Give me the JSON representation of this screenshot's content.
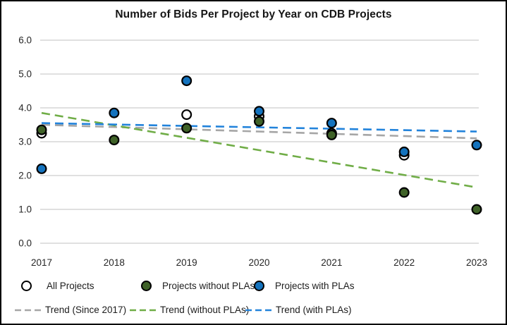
{
  "chart_data": {
    "type": "scatter",
    "title": "Number of Bids Per Project by Year on CDB Projects",
    "xlabel": "",
    "ylabel": "",
    "x": [
      2017,
      2018,
      2019,
      2020,
      2021,
      2022,
      2023
    ],
    "x_tick_labels": [
      "2017",
      "2018",
      "2019",
      "2020",
      "2021",
      "2022",
      "2023"
    ],
    "y_ticks": [
      0,
      1,
      2,
      3,
      4,
      5,
      6
    ],
    "y_tick_labels": [
      "0.0",
      "1.0",
      "2.0",
      "3.0",
      "4.0",
      "5.0",
      "6.0"
    ],
    "xlim": [
      2017,
      2023
    ],
    "ylim": [
      0,
      6
    ],
    "grid": "horizontal-only",
    "legend_position": "bottom",
    "series": [
      {
        "name": "All Projects",
        "marker": "open-circle",
        "fill": "#FFFFFF",
        "stroke": "#000000",
        "values": [
          3.25,
          null,
          3.8,
          3.75,
          3.25,
          2.6,
          null
        ]
      },
      {
        "name": "Projects without PLAs",
        "marker": "circle",
        "fill": "#3F6228",
        "stroke": "#000000",
        "values": [
          3.35,
          3.05,
          3.4,
          3.6,
          3.2,
          1.5,
          1.0
        ]
      },
      {
        "name": "Projects with PLAs",
        "marker": "circle",
        "fill": "#1473BE",
        "stroke": "#000000",
        "values": [
          2.2,
          3.85,
          4.8,
          3.9,
          3.55,
          2.7,
          2.9
        ]
      }
    ],
    "trend_lines": [
      {
        "name": "Trend (Since 2017)",
        "color": "#A6A6A6",
        "start_value": 3.5,
        "end_value": 3.1
      },
      {
        "name": "Trend (without PLAs)",
        "color": "#70AD47",
        "start_value": 3.85,
        "end_value": 1.65
      },
      {
        "name": "Trend (with PLAs)",
        "color": "#2283DB",
        "start_value": 3.55,
        "end_value": 3.3
      }
    ],
    "colors": {
      "gridline": "#DCDCDC",
      "text": "#262626",
      "frame_border": "#000000",
      "background": "#FFFFFF"
    }
  }
}
